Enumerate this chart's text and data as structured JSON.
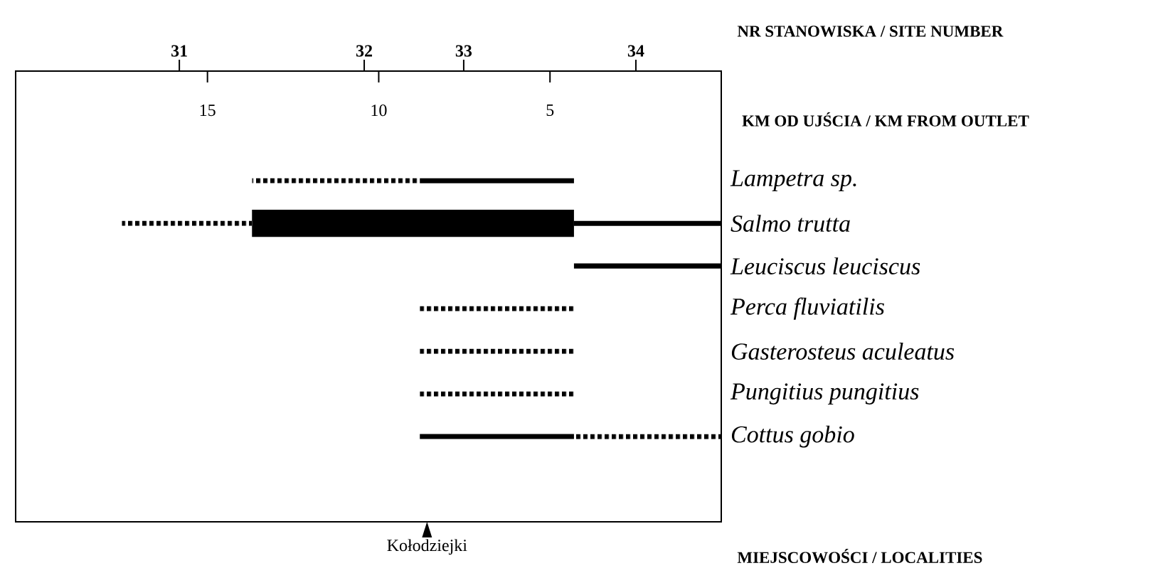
{
  "chart_data": {
    "type": "bar",
    "orientation": "horizontal",
    "categories": [
      "Lampetra sp.",
      "Salmo trutta",
      "Leuciscus leuciscus",
      "Perca fluviatilis",
      "Gasterosteus aculeatus",
      "Pungitius pungitius",
      "Cottus gobio"
    ],
    "xlabel": "KM OD UJŚCIA / KM FROM OUTLET",
    "xlim": [
      20.6,
      0
    ],
    "xticks": [
      15,
      10,
      5
    ],
    "annotations": [
      "31",
      "32",
      "33",
      "34",
      "NR STANOWISKA / SITE NUMBER",
      "Kołodziejki",
      "MIEJSCOWOŚCI / LOCALITIES"
    ],
    "series": [
      {
        "color": "#000000",
        "line_style": "dotted",
        "base": [
          8.8,
          13.7,
          null,
          4.3,
          4.3,
          4.3,
          0
        ],
        "values": [
          4.9,
          3.8,
          null,
          4.5,
          4.5,
          4.5,
          4.3
        ]
      },
      {
        "color": "#000000",
        "line_style": "solid",
        "base": [
          4.3,
          0,
          0,
          null,
          null,
          null,
          4.3
        ],
        "values": [
          4.5,
          4.3,
          4.3,
          null,
          null,
          null,
          4.5
        ]
      },
      {
        "color": "#000000",
        "base": [
          null,
          4.3,
          null,
          null,
          null,
          null,
          null
        ],
        "values": [
          null,
          9.4,
          null,
          null,
          null,
          null,
          null
        ]
      }
    ]
  }
}
